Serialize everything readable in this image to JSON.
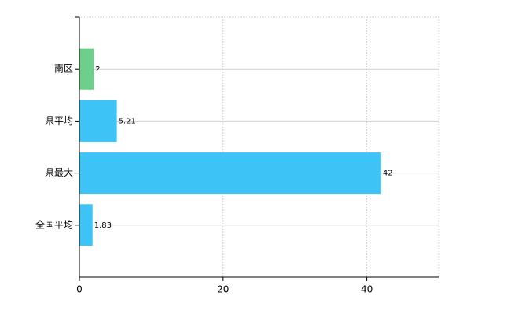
{
  "chart_data": {
    "type": "hbar",
    "categories": [
      "南区",
      "県平均",
      "県最大",
      "全国平均"
    ],
    "values": [
      2,
      5.21,
      42,
      1.83
    ],
    "colors": [
      "#6dd08a",
      "#3dc3f5",
      "#3dc3f5",
      "#3dc3f5"
    ],
    "xlim": [
      0,
      50
    ],
    "xticks": [
      0,
      20,
      40
    ],
    "grid": true
  }
}
